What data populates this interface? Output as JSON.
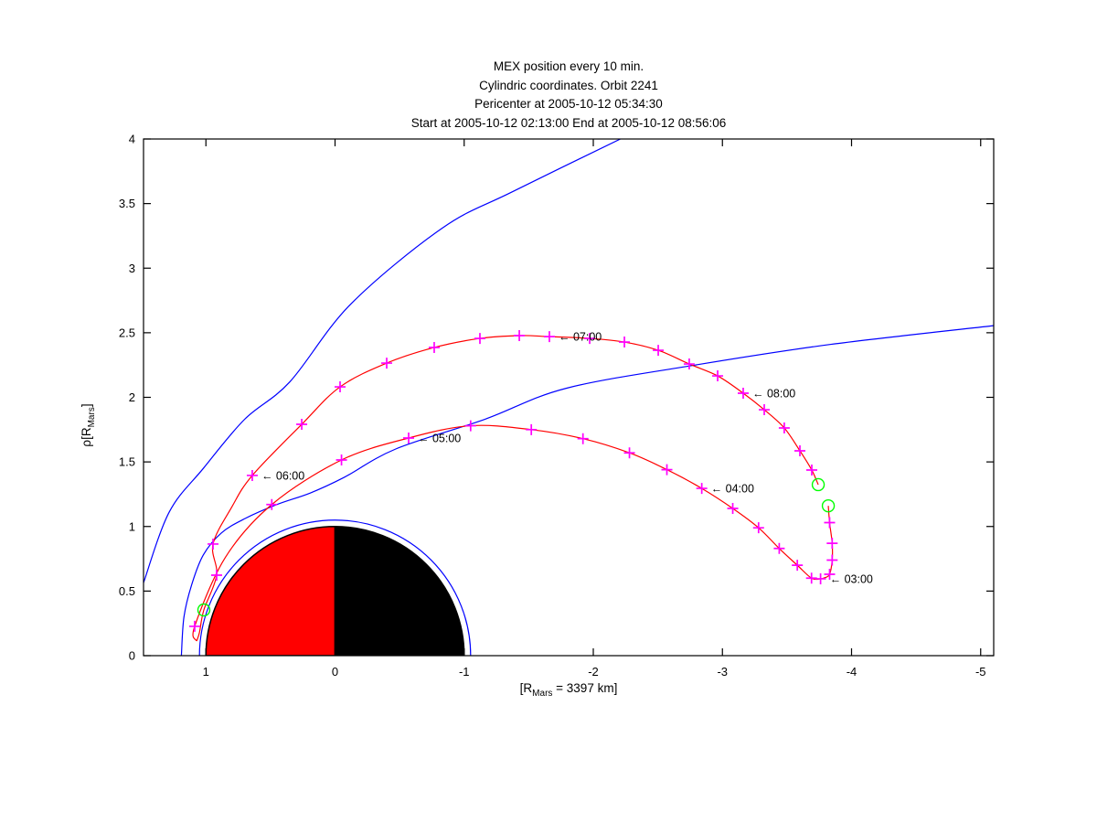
{
  "title_lines": [
    "MEX position every 10 min.",
    "Cylindric coordinates. Orbit 2241",
    "Pericenter at 2005-10-12 05:34:30",
    "Start at 2005-10-12 02:13:00 End at 2005-10-12 08:56:06"
  ],
  "axes": {
    "xlabel_pre": "[R",
    "xlabel_sub": "Mars",
    "xlabel_post": " = 3397 km]",
    "ylabel_pre": "ρ[R",
    "ylabel_sub": "Mars",
    "ylabel_post": "]",
    "x_tick_labels": [
      "1",
      "0",
      "-1",
      "-2",
      "-3",
      "-4",
      "-5"
    ],
    "x_tick_values": [
      1,
      0,
      -1,
      -2,
      -3,
      -4,
      -5
    ],
    "y_tick_labels": [
      "0",
      "0.5",
      "1",
      "1.5",
      "2",
      "2.5",
      "3",
      "3.5",
      "4"
    ],
    "y_tick_values": [
      0,
      0.5,
      1,
      1.5,
      2,
      2.5,
      3,
      3.5,
      4
    ],
    "xlim": [
      1.483,
      -5.1
    ],
    "ylim": [
      0,
      4
    ]
  },
  "colors": {
    "boundary": "#0000FF",
    "orbit": "#FF0000",
    "marker": "#FF00FF",
    "endpoint": "#00FF00",
    "planet_day": "#FF0000",
    "planet_night": "#000000",
    "axis": "#000000"
  },
  "arrow_prefix": "← ",
  "chart_data": {
    "type": "line",
    "title": "MEX position every 10 min. Cylindric coordinates. Orbit 2241. Pericenter at 2005-10-12 05:34:30. Start at 2005-10-12 02:13:00 End at 2005-10-12 08:56:06",
    "xlabel": "[R_Mars = 3397 km]",
    "ylabel": "rho [R_Mars]",
    "xlim": [
      1.483,
      -5.1
    ],
    "ylim": [
      0,
      4
    ],
    "x_axis_reversed": true,
    "grid": false,
    "legend": false,
    "planet": {
      "radius": 1,
      "halo_radius": 1.05,
      "dayside": "left-red",
      "nightside": "right-black"
    },
    "series": [
      {
        "name": "bow-shock-boundary",
        "color": "#0000FF",
        "points": [
          [
            1.483,
            0.565
          ],
          [
            1.285,
            1.11
          ],
          [
            1.02,
            1.45
          ],
          [
            0.7,
            1.83
          ],
          [
            0.35,
            2.12
          ],
          [
            -0.12,
            2.72
          ],
          [
            -0.83,
            3.31
          ],
          [
            -1.37,
            3.59
          ],
          [
            -2.21,
            4.0
          ]
        ]
      },
      {
        "name": "magnetic-pileup-boundary",
        "color": "#0000FF",
        "points": [
          [
            1.19,
            0.0
          ],
          [
            1.17,
            0.3
          ],
          [
            1.11,
            0.55
          ],
          [
            1.02,
            0.78
          ],
          [
            0.88,
            0.95
          ],
          [
            0.7,
            1.06
          ],
          [
            0.45,
            1.17
          ],
          [
            0.19,
            1.26
          ],
          [
            -0.07,
            1.38
          ],
          [
            -0.47,
            1.6
          ],
          [
            -1.16,
            1.83
          ],
          [
            -1.79,
            2.07
          ],
          [
            -2.79,
            2.25
          ],
          [
            -3.84,
            2.41
          ],
          [
            -5.1,
            2.555
          ]
        ]
      },
      {
        "name": "orbit-inbound",
        "color": "#FF0000",
        "points": [
          [
            -3.82,
            1.16
          ],
          [
            -3.83,
            1.03
          ],
          [
            -3.85,
            0.87
          ],
          [
            -3.85,
            0.74
          ],
          [
            -3.83,
            0.63
          ],
          [
            -3.79,
            0.602
          ],
          [
            -3.76,
            0.595
          ],
          [
            -3.69,
            0.6
          ],
          [
            -3.58,
            0.7
          ],
          [
            -3.44,
            0.83
          ],
          [
            -3.28,
            0.99
          ],
          [
            -3.08,
            1.14
          ],
          [
            -2.84,
            1.295
          ],
          [
            -2.57,
            1.44
          ],
          [
            -2.28,
            1.57
          ],
          [
            -1.92,
            1.68
          ],
          [
            -1.52,
            1.75
          ],
          [
            -1.05,
            1.78
          ],
          [
            -0.57,
            1.685
          ],
          [
            -0.05,
            1.515
          ],
          [
            0.49,
            1.17
          ],
          [
            0.85,
            0.76
          ],
          [
            1.087,
            0.227
          ],
          [
            1.072,
            0.113
          ]
        ]
      },
      {
        "name": "orbit-outbound",
        "color": "#FF0000",
        "points": [
          [
            1.072,
            0.113
          ],
          [
            1.05,
            0.18
          ],
          [
            1.016,
            0.354
          ],
          [
            0.917,
            0.623
          ],
          [
            0.945,
            0.864
          ],
          [
            0.8,
            1.15
          ],
          [
            0.641,
            1.395
          ],
          [
            0.258,
            1.791
          ],
          [
            -0.039,
            2.081
          ],
          [
            -0.4,
            2.265
          ],
          [
            -0.768,
            2.386
          ],
          [
            -1.122,
            2.456
          ],
          [
            -1.427,
            2.478
          ],
          [
            -1.66,
            2.47
          ],
          [
            -1.972,
            2.456
          ],
          [
            -2.241,
            2.428
          ],
          [
            -2.503,
            2.364
          ],
          [
            -2.743,
            2.258
          ],
          [
            -2.963,
            2.166
          ],
          [
            -3.161,
            2.032
          ],
          [
            -3.324,
            1.904
          ],
          [
            -3.479,
            1.763
          ],
          [
            -3.6,
            1.586
          ],
          [
            -3.692,
            1.437
          ],
          [
            -3.742,
            1.324
          ]
        ]
      }
    ],
    "position_markers": {
      "symbol": "+",
      "color": "#FF00FF",
      "interval": "10 min",
      "points": [
        [
          -3.83,
          1.03
        ],
        [
          -3.85,
          0.87
        ],
        [
          -3.85,
          0.74
        ],
        [
          -3.83,
          0.63
        ],
        [
          -3.76,
          0.595
        ],
        [
          -3.69,
          0.6
        ],
        [
          -3.58,
          0.7
        ],
        [
          -3.44,
          0.83
        ],
        [
          -3.28,
          0.99
        ],
        [
          -3.08,
          1.14
        ],
        [
          -2.84,
          1.295
        ],
        [
          -2.57,
          1.44
        ],
        [
          -2.28,
          1.57
        ],
        [
          -1.92,
          1.68
        ],
        [
          -1.52,
          1.75
        ],
        [
          -1.05,
          1.78
        ],
        [
          -0.57,
          1.685
        ],
        [
          -0.05,
          1.515
        ],
        [
          0.49,
          1.17
        ],
        [
          1.087,
          0.227
        ],
        [
          0.917,
          0.623
        ],
        [
          0.945,
          0.864
        ],
        [
          0.641,
          1.395
        ],
        [
          0.258,
          1.791
        ],
        [
          -0.039,
          2.081
        ],
        [
          -0.4,
          2.265
        ],
        [
          -0.768,
          2.386
        ],
        [
          -1.122,
          2.456
        ],
        [
          -1.427,
          2.478
        ],
        [
          -1.66,
          2.47
        ],
        [
          -1.972,
          2.456
        ],
        [
          -2.241,
          2.428
        ],
        [
          -2.503,
          2.364
        ],
        [
          -2.743,
          2.258
        ],
        [
          -2.963,
          2.166
        ],
        [
          -3.161,
          2.032
        ],
        [
          -3.324,
          1.904
        ],
        [
          -3.479,
          1.763
        ],
        [
          -3.6,
          1.586
        ],
        [
          -3.692,
          1.437
        ]
      ]
    },
    "endpoints": {
      "symbol": "o",
      "color": "#00FF00",
      "points": [
        {
          "label": "start",
          "x": -3.82,
          "y": 1.16
        },
        {
          "label": "end",
          "x": -3.742,
          "y": 1.324
        },
        {
          "label": "pericenter",
          "x": 1.016,
          "y": 0.354
        }
      ]
    },
    "time_labels": [
      {
        "text": "03:00",
        "x": -3.76,
        "y": 0.595
      },
      {
        "text": "04:00",
        "x": -2.84,
        "y": 1.295
      },
      {
        "text": "05:00",
        "x": -0.57,
        "y": 1.685
      },
      {
        "text": "06:00",
        "x": 0.641,
        "y": 1.395
      },
      {
        "text": "07:00",
        "x": -1.66,
        "y": 2.47
      },
      {
        "text": "08:00",
        "x": -3.161,
        "y": 2.032
      }
    ]
  }
}
